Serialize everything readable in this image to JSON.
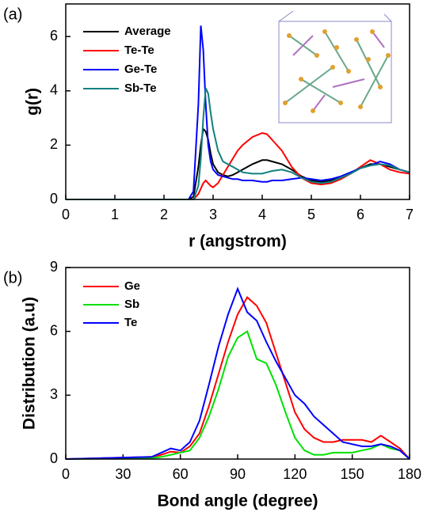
{
  "chart_data": [
    {
      "type": "line",
      "panel_label": "(a)",
      "x_label": "r (angstrom)",
      "y_label": "g(r)",
      "xlim": [
        0,
        7
      ],
      "xticks": [
        0,
        1,
        2,
        3,
        4,
        5,
        6,
        7
      ],
      "ylim": [
        0,
        7.2
      ],
      "yticks": [
        0,
        2,
        4,
        6
      ],
      "legend": "upper left",
      "x": [
        0,
        2.5,
        2.6,
        2.7,
        2.75,
        2.8,
        2.85,
        2.9,
        2.95,
        3.0,
        3.1,
        3.2,
        3.3,
        3.4,
        3.5,
        3.6,
        3.8,
        4.0,
        4.1,
        4.2,
        4.4,
        4.6,
        4.8,
        5.0,
        5.2,
        5.4,
        5.6,
        5.8,
        6.0,
        6.2,
        6.4,
        6.6,
        6.8,
        7.0
      ],
      "series": [
        {
          "name": "Average",
          "color": "#000000",
          "values": [
            0,
            0,
            0.1,
            1.2,
            2.0,
            2.6,
            2.5,
            2.2,
            1.7,
            1.3,
            1.0,
            0.9,
            0.85,
            0.9,
            1.0,
            1.1,
            1.3,
            1.45,
            1.45,
            1.4,
            1.3,
            1.1,
            0.85,
            0.7,
            0.65,
            0.7,
            0.8,
            0.95,
            1.15,
            1.3,
            1.3,
            1.2,
            1.1,
            1.0
          ]
        },
        {
          "name": "Te-Te",
          "color": "#ff0000",
          "values": [
            0,
            0,
            0,
            0.2,
            0.4,
            0.6,
            0.7,
            0.6,
            0.5,
            0.45,
            0.6,
            0.9,
            1.2,
            1.5,
            1.8,
            2.0,
            2.3,
            2.45,
            2.4,
            2.2,
            1.8,
            1.2,
            0.8,
            0.6,
            0.55,
            0.6,
            0.75,
            0.95,
            1.2,
            1.45,
            1.3,
            1.1,
            1.0,
            0.95
          ]
        },
        {
          "name": "Ge-Te",
          "color": "#0000ff",
          "values": [
            0,
            0,
            0.3,
            3.5,
            6.4,
            5.5,
            3.5,
            2.0,
            1.4,
            1.1,
            0.9,
            0.85,
            0.8,
            0.75,
            0.75,
            0.7,
            0.7,
            0.65,
            0.65,
            0.7,
            0.7,
            0.75,
            0.8,
            0.75,
            0.7,
            0.75,
            0.85,
            1.0,
            1.15,
            1.25,
            1.4,
            1.3,
            1.1,
            1.0
          ]
        },
        {
          "name": "Sb-Te",
          "color": "#108080",
          "values": [
            0,
            0,
            0,
            0.5,
            1.5,
            3.0,
            4.1,
            3.9,
            3.2,
            2.6,
            1.8,
            1.4,
            1.3,
            1.2,
            1.1,
            1.0,
            0.95,
            0.95,
            1.0,
            1.05,
            1.1,
            1.0,
            0.8,
            0.65,
            0.6,
            0.65,
            0.8,
            0.95,
            1.15,
            1.25,
            1.3,
            1.25,
            1.1,
            1.0
          ]
        }
      ]
    },
    {
      "type": "line",
      "panel_label": "(b)",
      "x_label": "Bond angle (degree)",
      "y_label": "Distribution (a.u)",
      "xlim": [
        0,
        180
      ],
      "xticks": [
        0,
        30,
        60,
        90,
        120,
        150,
        180
      ],
      "ylim": [
        0,
        9
      ],
      "yticks": [
        0,
        3,
        6,
        9
      ],
      "legend": "upper left",
      "x": [
        0,
        45,
        50,
        55,
        60,
        65,
        70,
        75,
        80,
        85,
        90,
        95,
        100,
        105,
        110,
        115,
        120,
        125,
        130,
        135,
        140,
        145,
        150,
        155,
        160,
        165,
        170,
        175,
        180
      ],
      "series": [
        {
          "name": "Ge",
          "color": "#ff0000",
          "values": [
            0,
            0.1,
            0.2,
            0.35,
            0.3,
            0.6,
            1.2,
            2.5,
            4.0,
            5.5,
            6.8,
            7.6,
            7.2,
            6.4,
            5.0,
            3.6,
            2.2,
            1.4,
            1.0,
            0.8,
            0.8,
            0.9,
            0.9,
            0.9,
            0.8,
            1.1,
            0.8,
            0.5,
            0
          ]
        },
        {
          "name": "Sb",
          "color": "#00e000",
          "values": [
            0,
            0.05,
            0.1,
            0.2,
            0.3,
            0.4,
            1.0,
            2.0,
            3.3,
            4.8,
            5.7,
            6.0,
            4.7,
            4.5,
            3.5,
            2.2,
            1.0,
            0.4,
            0.2,
            0.2,
            0.3,
            0.3,
            0.3,
            0.4,
            0.5,
            0.7,
            0.5,
            0.4,
            0
          ]
        },
        {
          "name": "Te",
          "color": "#0000ff",
          "values": [
            0,
            0.1,
            0.3,
            0.5,
            0.4,
            0.8,
            1.8,
            3.5,
            5.3,
            6.8,
            8.0,
            6.9,
            6.5,
            5.5,
            4.6,
            3.8,
            3.0,
            2.6,
            2.0,
            1.6,
            1.2,
            0.8,
            0.7,
            0.6,
            0.6,
            0.7,
            0.6,
            0.4,
            0
          ]
        }
      ]
    }
  ]
}
